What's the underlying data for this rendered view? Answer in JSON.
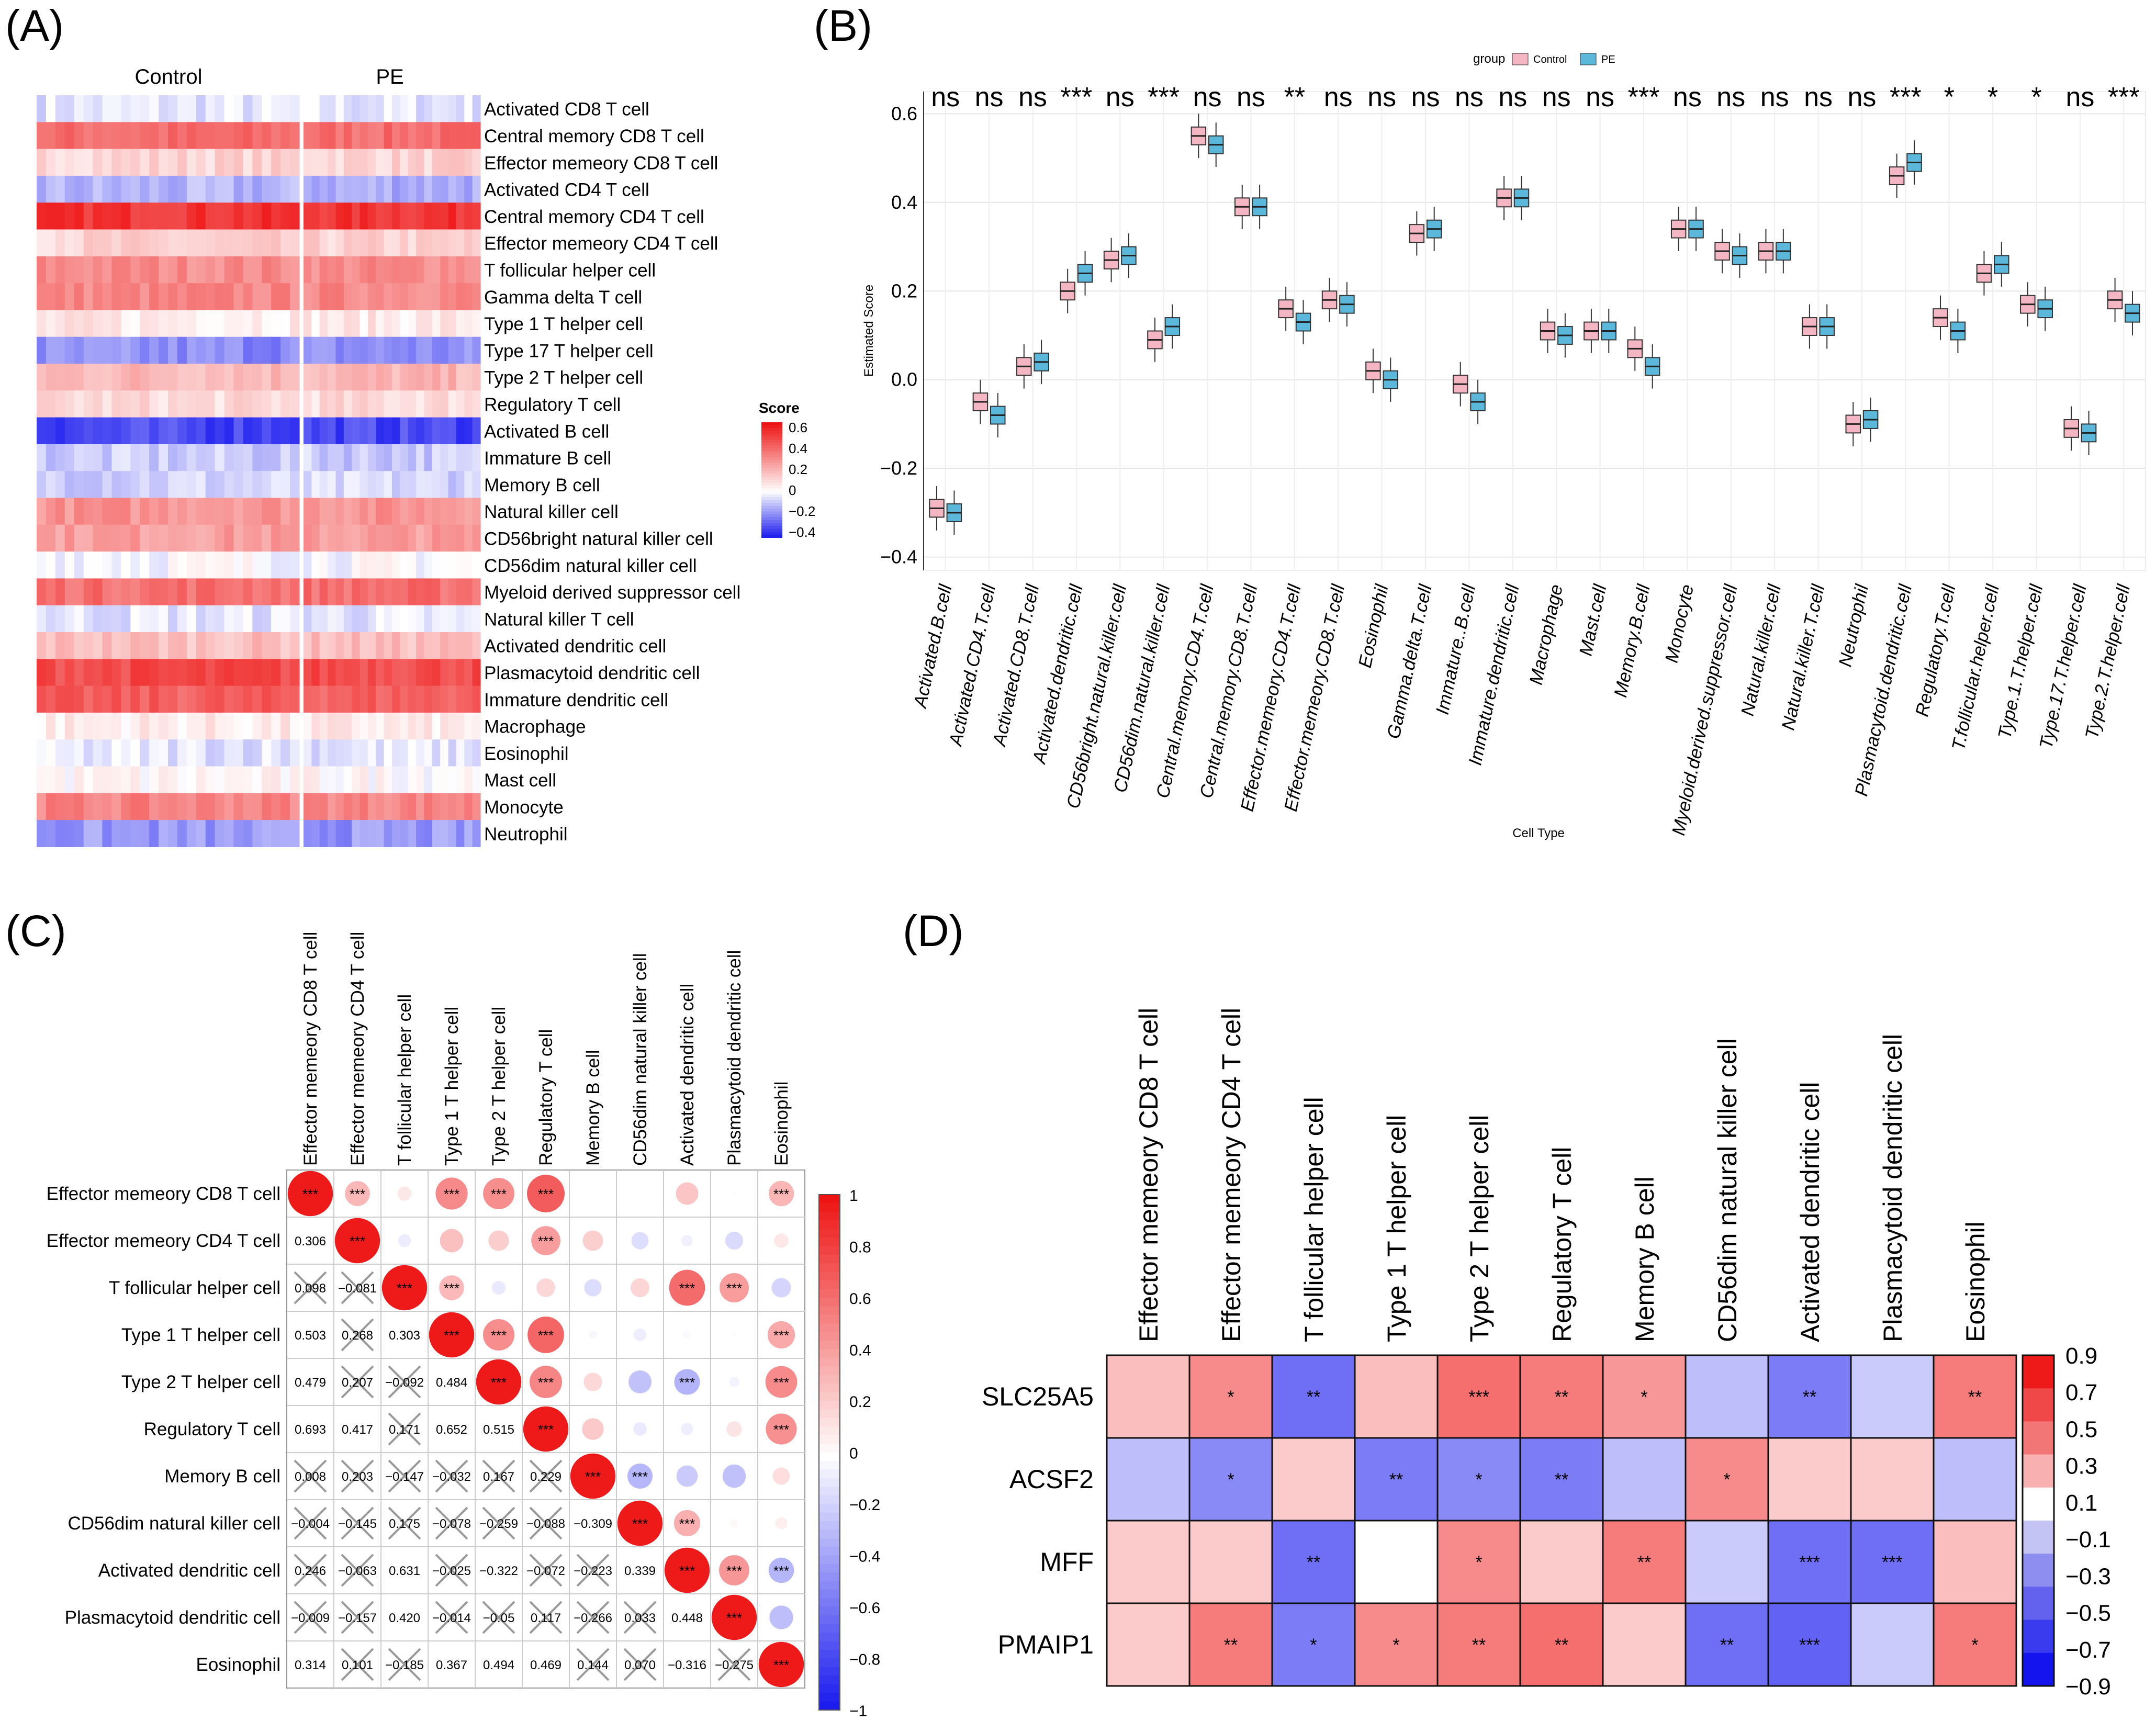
{
  "panels": {
    "a": "(A)",
    "b": "(B)",
    "c": "(C)",
    "d": "(D)"
  },
  "chart_data": [
    {
      "panel": "A",
      "type": "heatmap",
      "groups": [
        "Control",
        "PE"
      ],
      "rows": [
        "Activated CD8 T cell",
        "Central memory CD8 T cell",
        "Effector memeory CD8 T cell",
        "Activated CD4 T cell",
        "Central memory CD4 T cell",
        "Effector memeory CD4 T cell",
        "T follicular helper cell",
        "Gamma delta T cell",
        "Type 1 T helper cell",
        "Type 17 T helper cell",
        "Type 2 T helper cell",
        "Regulatory T cell",
        "Activated B cell",
        "Immature  B cell",
        "Memory B cell",
        "Natural killer cell",
        "CD56bright natural killer cell",
        "CD56dim natural killer cell",
        "Myeloid derived suppressor cell",
        "Natural killer T cell",
        "Activated dendritic cell",
        "Plasmacytoid dendritic cell",
        "Immature dendritic cell",
        "Macrophage",
        "Eosinophil",
        "Mast cell",
        "Monocyte",
        "Neutrophil"
      ],
      "row_mean": [
        -0.05,
        0.4,
        0.12,
        -0.15,
        0.56,
        0.12,
        0.32,
        0.33,
        0.06,
        -0.22,
        0.2,
        0.1,
        -0.35,
        -0.1,
        -0.08,
        0.3,
        0.27,
        0.0,
        0.4,
        -0.05,
        0.18,
        0.5,
        0.44,
        0.05,
        -0.05,
        0.02,
        0.34,
        -0.2
      ],
      "legend_title": "Score",
      "legend_ticks": [
        "0.6",
        "0.4",
        "0.2",
        "0",
        "−0.2",
        "−0.4"
      ],
      "legend_range": [
        -0.45,
        0.65
      ]
    },
    {
      "panel": "B",
      "type": "boxplot",
      "legend_title": "group",
      "series": [
        {
          "name": "Control",
          "color": "#F4B6C2"
        },
        {
          "name": "PE",
          "color": "#5BB8DB"
        }
      ],
      "ylabel": "Estimated Score",
      "xlabel": "Cell Type",
      "ylim": [
        -0.43,
        0.65
      ],
      "yticks": [
        "0.6",
        "0.4",
        "0.2",
        "0.0",
        "−0.2",
        "−0.4"
      ],
      "categories": [
        "Activated.B.cell",
        "Activated.CD4.T.cell",
        "Activated.CD8.T.cell",
        "Activated.dendritic.cell",
        "CD56bright.natural.killer.cell",
        "CD56dim.natural.killer.cell",
        "Central.memory.CD4.T.cell",
        "Central.memory.CD8.T.cell",
        "Effector.memeory.CD4.T.cell",
        "Effector.memeory.CD8.T.cell",
        "Eosinophil",
        "Gamma.delta.T.cell",
        "Immature..B.cell",
        "Immature.dendritic.cell",
        "Macrophage",
        "Mast.cell",
        "Memory.B.cell",
        "Monocyte",
        "Myeloid.derived.suppressor.cell",
        "Natural.killer.cell",
        "Natural.killer.T.cell",
        "Neutrophil",
        "Plasmacytoid.dendritic.cell",
        "Regulatory.T.cell",
        "T.follicular.helper.cell",
        "Type.1.T.helper.cell",
        "Type.17.T.helper.cell",
        "Type.2.T.helper.cell"
      ],
      "significance": [
        "ns",
        "ns",
        "ns",
        "***",
        "ns",
        "***",
        "ns",
        "ns",
        "**",
        "ns",
        "ns",
        "ns",
        "ns",
        "ns",
        "ns",
        "ns",
        "***",
        "ns",
        "ns",
        "ns",
        "ns",
        "ns",
        "***",
        "*",
        "*",
        "*",
        "ns",
        "***"
      ],
      "control_median": [
        -0.29,
        -0.05,
        0.03,
        0.2,
        0.27,
        0.09,
        0.55,
        0.39,
        0.16,
        0.18,
        0.02,
        0.33,
        -0.01,
        0.41,
        0.11,
        0.11,
        0.07,
        0.34,
        0.29,
        0.29,
        0.12,
        -0.1,
        0.46,
        0.14,
        0.24,
        0.17,
        -0.11,
        0.18
      ],
      "pe_median": [
        -0.3,
        -0.08,
        0.04,
        0.24,
        0.28,
        0.12,
        0.53,
        0.39,
        0.13,
        0.17,
        0.0,
        0.34,
        -0.05,
        0.41,
        0.1,
        0.11,
        0.03,
        0.34,
        0.28,
        0.29,
        0.12,
        -0.09,
        0.49,
        0.11,
        0.26,
        0.16,
        -0.12,
        0.15
      ]
    },
    {
      "panel": "C",
      "type": "correlation-matrix",
      "labels": [
        "Effector memeory CD8 T cell",
        "Effector memeory CD4 T cell",
        "T follicular helper cell",
        "Type 1 T helper cell",
        "Type 2 T helper cell",
        "Regulatory T cell",
        "Memory B cell",
        "CD56dim natural killer cell",
        "Activated dendritic cell",
        "Plasmacytoid dendritic cell",
        "Eosinophil"
      ],
      "lower_values": [
        [],
        [
          "0.306"
        ],
        [
          "0.098",
          "−0.081"
        ],
        [
          "0.503",
          "0.268",
          "0.303"
        ],
        [
          "0.479",
          "0.207",
          "−0.092",
          "0.484"
        ],
        [
          "0.693",
          "0.417",
          "0.171",
          "0.652",
          "0.515"
        ],
        [
          "0.008",
          "0.203",
          "−0.147",
          "−0.032",
          "0.167",
          "0.229"
        ],
        [
          "−0.004",
          "−0.145",
          "0.175",
          "−0.078",
          "−0.259",
          "−0.088",
          "−0.309"
        ],
        [
          "0.246",
          "−0.063",
          "0.631",
          "−0.025",
          "−0.322",
          "−0.072",
          "−0.223",
          "0.339"
        ],
        [
          "−0.009",
          "−0.157",
          "0.420",
          "−0.014",
          "−0.05",
          "0.117",
          "−0.266",
          "0.033",
          "0.448"
        ],
        [
          "0.314",
          "0.101",
          "−0.185",
          "0.367",
          "0.494",
          "0.469",
          "0.144",
          "0.070",
          "−0.316",
          "−0.275"
        ]
      ],
      "upper_sig": [
        [
          "***",
          "***",
          "",
          "***",
          "***",
          "***",
          "",
          "",
          "",
          "",
          "***"
        ],
        [
          "",
          "***",
          "",
          "",
          "",
          "***",
          "",
          "",
          "",
          "",
          ""
        ],
        [
          "",
          "",
          "***",
          "***",
          "",
          "",
          "",
          "",
          "***",
          "***",
          ""
        ],
        [
          "",
          "",
          "",
          "***",
          "***",
          "***",
          "",
          "",
          "",
          "",
          "***"
        ],
        [
          "",
          "",
          "",
          "",
          "***",
          "***",
          "",
          "",
          "***",
          "",
          "***"
        ],
        [
          "",
          "",
          "",
          "",
          "",
          "***",
          "",
          "",
          "",
          "",
          "***"
        ],
        [
          "",
          "",
          "",
          "",
          "",
          "",
          "***",
          "***",
          "",
          "",
          ""
        ],
        [
          "",
          "",
          "",
          "",
          "",
          "",
          "",
          "***",
          "***",
          "",
          ""
        ],
        [
          "",
          "",
          "",
          "",
          "",
          "",
          "",
          "",
          "***",
          "***",
          "***"
        ],
        [
          "",
          "",
          "",
          "",
          "",
          "",
          "",
          "",
          "",
          "***",
          ""
        ],
        [
          "",
          "",
          "",
          "",
          "",
          "",
          "",
          "",
          "",
          "",
          "***"
        ]
      ],
      "crossed": [
        [],
        [
          false
        ],
        [
          true,
          true
        ],
        [
          false,
          true,
          false
        ],
        [
          false,
          true,
          true,
          false
        ],
        [
          false,
          false,
          true,
          false,
          false
        ],
        [
          true,
          true,
          true,
          true,
          true,
          true
        ],
        [
          true,
          true,
          true,
          true,
          true,
          true,
          false
        ],
        [
          true,
          true,
          false,
          true,
          false,
          true,
          true,
          false
        ],
        [
          true,
          true,
          false,
          true,
          true,
          true,
          true,
          true,
          false
        ],
        [
          false,
          true,
          true,
          false,
          false,
          false,
          true,
          true,
          false,
          true
        ]
      ],
      "legend_ticks": [
        "1",
        "0.8",
        "0.6",
        "0.4",
        "0.2",
        "0",
        "−0.2",
        "−0.4",
        "−0.6",
        "−0.8",
        "−1"
      ],
      "legend_range": [
        -1,
        1
      ]
    },
    {
      "panel": "D",
      "type": "heatmap",
      "rows": [
        "SLC25A5",
        "ACSF2",
        "MFF",
        "PMAIP1"
      ],
      "columns": [
        "Effector memeory CD8 T cell",
        "Effector memeory CD4 T cell",
        "T follicular helper cell",
        "Type 1 T helper cell",
        "Type 2 T helper cell",
        "Regulatory T cell",
        "Memory B cell",
        "CD56dim natural killer cell",
        "Activated dendritic cell",
        "Plasmacytoid dendritic cell",
        "Eosinophil"
      ],
      "values": [
        [
          0.25,
          0.45,
          -0.55,
          0.25,
          0.55,
          0.5,
          0.4,
          -0.25,
          -0.5,
          -0.2,
          0.5
        ],
        [
          -0.25,
          -0.45,
          0.2,
          -0.5,
          -0.45,
          -0.5,
          -0.25,
          0.45,
          0.2,
          0.2,
          -0.25
        ],
        [
          0.2,
          0.2,
          -0.55,
          0.0,
          0.45,
          0.2,
          0.5,
          -0.2,
          -0.55,
          -0.55,
          0.25
        ],
        [
          0.2,
          0.5,
          -0.5,
          0.45,
          0.5,
          0.55,
          0.2,
          -0.55,
          -0.6,
          -0.2,
          0.5
        ]
      ],
      "sig": [
        [
          "",
          "*",
          "**",
          "",
          "***",
          "**",
          "*",
          "",
          "**",
          "",
          "**"
        ],
        [
          "",
          "*",
          "",
          "**",
          "*",
          "**",
          "",
          "*",
          "",
          "",
          ""
        ],
        [
          "",
          "",
          "**",
          "",
          "*",
          "",
          "**",
          "",
          "***",
          "***",
          ""
        ],
        [
          "",
          "**",
          "*",
          "*",
          "**",
          "**",
          "",
          "**",
          "***",
          "",
          "*"
        ]
      ],
      "legend_ticks": [
        "0.9",
        "0.7",
        "0.5",
        "0.3",
        "0.1",
        "−0.1",
        "−0.3",
        "−0.5",
        "−0.7",
        "−0.9"
      ],
      "legend_range": [
        -0.9,
        0.9
      ]
    }
  ]
}
